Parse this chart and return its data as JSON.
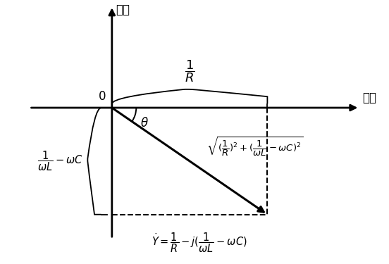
{
  "figsize": [
    5.52,
    3.75
  ],
  "dpi": 100,
  "bg_color": "#ffffff",
  "ox": 0.0,
  "oy": 0.0,
  "vx": 3.2,
  "vy": -2.2,
  "xmin": -1.8,
  "xmax": 5.2,
  "ymin": -3.2,
  "ymax": 2.2,
  "real_axis_label": "実軸",
  "imag_axis_label": "虚軸",
  "origin_label": "0",
  "theta_label": "\\theta",
  "text_color": "#000000",
  "arrow_color": "#000000",
  "dashed_color": "#000000"
}
